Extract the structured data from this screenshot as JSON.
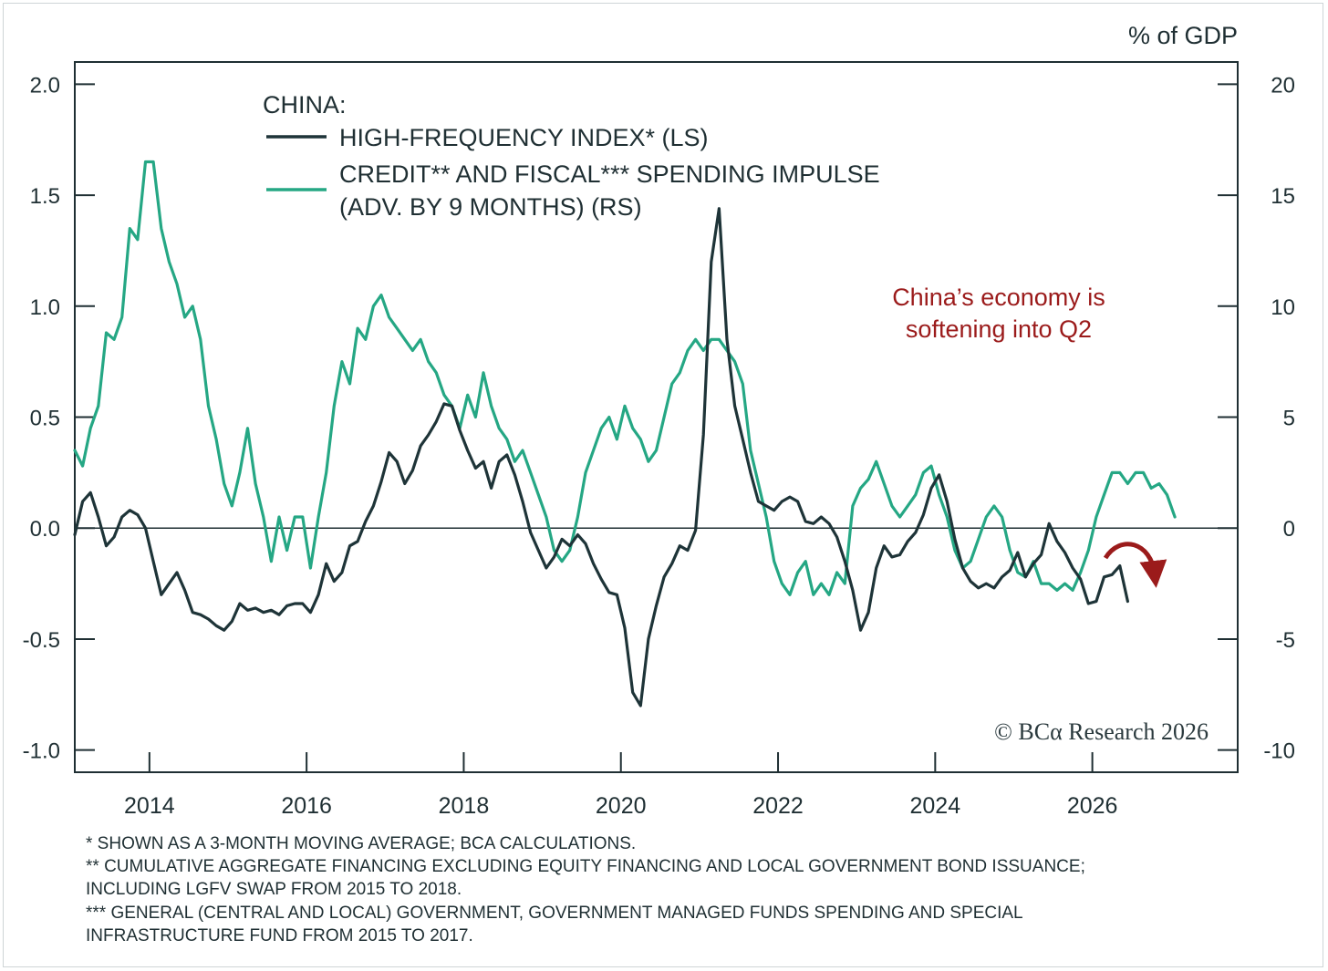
{
  "chart_data": {
    "type": "line",
    "unit_label": "% of GDP",
    "legend_title": "CHINA:",
    "legend": [
      {
        "label_lines": [
          "HIGH-FREQUENCY INDEX* (LS)"
        ],
        "color": "#1e3438"
      },
      {
        "label_lines": [
          "CREDIT** AND FISCAL*** SPENDING IMPULSE",
          "(ADV. BY 9 MONTHS) (RS)"
        ],
        "color": "#25a784"
      }
    ],
    "annotation_lines": [
      "China’s economy is",
      "softening into Q2"
    ],
    "annotation_color": "#9b1b1b",
    "copyright": "© BCα Research 2026",
    "footnotes": [
      "* SHOWN AS A 3-MONTH MOVING AVERAGE; BCA CALCULATIONS.",
      "** CUMULATIVE AGGREGATE FINANCING EXCLUDING EQUITY FINANCING AND LOCAL GOVERNMENT BOND ISSUANCE;",
      "INCLUDING LGFV SWAP FROM 2015 TO 2018.",
      "*** GENERAL (CENTRAL AND LOCAL) GOVERNMENT, GOVERNMENT MANAGED FUNDS SPENDING AND SPECIAL",
      "INFRASTRUCTURE FUND FROM 2015 TO 2017."
    ],
    "x_range": [
      2013.05,
      2027.85
    ],
    "x_ticks": [
      2014,
      2016,
      2018,
      2020,
      2022,
      2024,
      2026
    ],
    "x_tick_labels": [
      "2014",
      "2016",
      "2018",
      "2020",
      "2022",
      "2024",
      "2026"
    ],
    "y_left_range": [
      -1.1,
      2.1
    ],
    "y_left_ticks": [
      2.0,
      1.5,
      1.0,
      0.5,
      0.0,
      -0.5,
      -1.0
    ],
    "y_left_tick_labels": [
      "2.0",
      "1.5",
      "1.0",
      "0.5",
      "0.0",
      "-0.5",
      "-1.0"
    ],
    "y_right_range": [
      -11,
      21
    ],
    "y_right_ticks": [
      20,
      15,
      10,
      5,
      0,
      -5,
      -10
    ],
    "y_right_tick_labels": [
      "20",
      "15",
      "10",
      "5",
      "0",
      "-5",
      "-10"
    ],
    "grid": false,
    "legend_position": "top-left",
    "series": [
      {
        "name": "HIGH-FREQUENCY INDEX* (LS)",
        "axis": "left",
        "color": "#1e3438",
        "x": [
          2013.05,
          2013.15,
          2013.25,
          2013.35,
          2013.45,
          2013.55,
          2013.65,
          2013.75,
          2013.85,
          2013.95,
          2014.05,
          2014.15,
          2014.25,
          2014.35,
          2014.45,
          2014.55,
          2014.65,
          2014.75,
          2014.85,
          2014.95,
          2015.05,
          2015.15,
          2015.25,
          2015.35,
          2015.45,
          2015.55,
          2015.65,
          2015.75,
          2015.85,
          2015.95,
          2016.05,
          2016.15,
          2016.25,
          2016.35,
          2016.45,
          2016.55,
          2016.65,
          2016.75,
          2016.85,
          2016.95,
          2017.05,
          2017.15,
          2017.25,
          2017.35,
          2017.45,
          2017.55,
          2017.65,
          2017.75,
          2017.85,
          2017.95,
          2018.05,
          2018.15,
          2018.25,
          2018.35,
          2018.45,
          2018.55,
          2018.65,
          2018.75,
          2018.85,
          2018.95,
          2019.05,
          2019.15,
          2019.25,
          2019.35,
          2019.45,
          2019.55,
          2019.65,
          2019.75,
          2019.85,
          2019.95,
          2020.05,
          2020.15,
          2020.25,
          2020.35,
          2020.45,
          2020.55,
          2020.65,
          2020.75,
          2020.85,
          2020.95,
          2021.05,
          2021.15,
          2021.25,
          2021.35,
          2021.45,
          2021.55,
          2021.65,
          2021.75,
          2021.85,
          2021.95,
          2022.05,
          2022.15,
          2022.25,
          2022.35,
          2022.45,
          2022.55,
          2022.65,
          2022.75,
          2022.85,
          2022.95,
          2023.05,
          2023.15,
          2023.25,
          2023.35,
          2023.45,
          2023.55,
          2023.65,
          2023.75,
          2023.85,
          2023.95,
          2024.05,
          2024.15,
          2024.25,
          2024.35,
          2024.45,
          2024.55,
          2024.65,
          2024.75,
          2024.85,
          2024.95,
          2025.05,
          2025.15,
          2025.25,
          2025.35,
          2025.45,
          2025.55,
          2025.65,
          2025.75,
          2025.85,
          2025.95,
          2026.05,
          2026.15,
          2026.25,
          2026.35,
          2026.45
        ],
        "values": [
          -0.03,
          0.12,
          0.16,
          0.05,
          -0.08,
          -0.04,
          0.05,
          0.08,
          0.06,
          0.0,
          -0.15,
          -0.3,
          -0.25,
          -0.2,
          -0.28,
          -0.38,
          -0.39,
          -0.41,
          -0.44,
          -0.46,
          -0.42,
          -0.34,
          -0.37,
          -0.36,
          -0.38,
          -0.37,
          -0.39,
          -0.35,
          -0.34,
          -0.34,
          -0.38,
          -0.3,
          -0.16,
          -0.24,
          -0.2,
          -0.08,
          -0.06,
          0.03,
          0.1,
          0.21,
          0.34,
          0.3,
          0.2,
          0.26,
          0.37,
          0.42,
          0.48,
          0.56,
          0.55,
          0.44,
          0.35,
          0.27,
          0.3,
          0.18,
          0.3,
          0.33,
          0.24,
          0.12,
          -0.02,
          -0.1,
          -0.18,
          -0.13,
          -0.05,
          -0.08,
          -0.03,
          -0.07,
          -0.16,
          -0.23,
          -0.29,
          -0.3,
          -0.45,
          -0.74,
          -0.8,
          -0.5,
          -0.35,
          -0.22,
          -0.16,
          -0.08,
          -0.1,
          -0.01,
          0.42,
          1.2,
          1.44,
          0.85,
          0.55,
          0.4,
          0.25,
          0.12,
          0.1,
          0.08,
          0.12,
          0.14,
          0.12,
          0.03,
          0.02,
          0.05,
          0.02,
          -0.04,
          -0.15,
          -0.28,
          -0.46,
          -0.38,
          -0.18,
          -0.08,
          -0.13,
          -0.12,
          -0.06,
          -0.02,
          0.06,
          0.18,
          0.24,
          0.12,
          -0.05,
          -0.18,
          -0.24,
          -0.27,
          -0.25,
          -0.27,
          -0.22,
          -0.19,
          -0.11,
          -0.22,
          -0.16,
          -0.12,
          0.02,
          -0.06,
          -0.11,
          -0.18,
          -0.23,
          -0.34,
          -0.33,
          -0.22,
          -0.21,
          -0.17,
          -0.33
        ]
      },
      {
        "name": "CREDIT** AND FISCAL*** SPENDING IMPULSE (ADV. BY 9 MONTHS) (RS)",
        "axis": "right",
        "color": "#25a784",
        "x": [
          2013.05,
          2013.15,
          2013.25,
          2013.35,
          2013.45,
          2013.55,
          2013.65,
          2013.75,
          2013.85,
          2013.95,
          2014.05,
          2014.15,
          2014.25,
          2014.35,
          2014.45,
          2014.55,
          2014.65,
          2014.75,
          2014.85,
          2014.95,
          2015.05,
          2015.15,
          2015.25,
          2015.35,
          2015.45,
          2015.55,
          2015.65,
          2015.75,
          2015.85,
          2015.95,
          2016.05,
          2016.15,
          2016.25,
          2016.35,
          2016.45,
          2016.55,
          2016.65,
          2016.75,
          2016.85,
          2016.95,
          2017.05,
          2017.15,
          2017.25,
          2017.35,
          2017.45,
          2017.55,
          2017.65,
          2017.75,
          2017.85,
          2017.95,
          2018.05,
          2018.15,
          2018.25,
          2018.35,
          2018.45,
          2018.55,
          2018.65,
          2018.75,
          2018.85,
          2018.95,
          2019.05,
          2019.15,
          2019.25,
          2019.35,
          2019.45,
          2019.55,
          2019.65,
          2019.75,
          2019.85,
          2019.95,
          2020.05,
          2020.15,
          2020.25,
          2020.35,
          2020.45,
          2020.55,
          2020.65,
          2020.75,
          2020.85,
          2020.95,
          2021.05,
          2021.15,
          2021.25,
          2021.35,
          2021.45,
          2021.55,
          2021.65,
          2021.75,
          2021.85,
          2021.95,
          2022.05,
          2022.15,
          2022.25,
          2022.35,
          2022.45,
          2022.55,
          2022.65,
          2022.75,
          2022.85,
          2022.95,
          2023.05,
          2023.15,
          2023.25,
          2023.35,
          2023.45,
          2023.55,
          2023.65,
          2023.75,
          2023.85,
          2023.95,
          2024.05,
          2024.15,
          2024.25,
          2024.35,
          2024.45,
          2024.55,
          2024.65,
          2024.75,
          2024.85,
          2024.95,
          2025.05,
          2025.15,
          2025.25,
          2025.35,
          2025.45,
          2025.55,
          2025.65,
          2025.75,
          2025.85,
          2025.95,
          2026.05,
          2026.15,
          2026.25,
          2026.35,
          2026.45,
          2026.55,
          2026.65,
          2026.75,
          2026.85,
          2026.95,
          2027.05
        ],
        "values": [
          3.5,
          2.8,
          4.5,
          5.5,
          8.8,
          8.5,
          9.5,
          13.5,
          13.0,
          16.5,
          16.5,
          13.5,
          12.0,
          11.0,
          9.5,
          10.0,
          8.5,
          5.5,
          4.0,
          2.0,
          1.0,
          2.5,
          4.5,
          2.0,
          0.5,
          -1.5,
          0.5,
          -1.0,
          0.5,
          0.5,
          -1.8,
          0.5,
          2.5,
          5.5,
          7.5,
          6.5,
          9.0,
          8.5,
          10.0,
          10.5,
          9.5,
          9.0,
          8.5,
          8.0,
          8.5,
          7.5,
          7.0,
          6.0,
          5.5,
          4.5,
          6.0,
          5.0,
          7.0,
          5.5,
          4.5,
          4.0,
          3.0,
          3.5,
          2.5,
          1.5,
          0.5,
          -1.0,
          -1.5,
          -1.0,
          0.5,
          2.5,
          3.5,
          4.5,
          5.0,
          4.0,
          5.5,
          4.5,
          4.0,
          3.0,
          3.5,
          5.0,
          6.5,
          7.0,
          8.0,
          8.5,
          8.0,
          8.5,
          8.5,
          8.0,
          7.5,
          6.5,
          3.5,
          2.0,
          0.5,
          -1.5,
          -2.5,
          -3.0,
          -2.0,
          -1.5,
          -3.0,
          -2.5,
          -3.0,
          -2.0,
          -2.5,
          1.0,
          1.8,
          2.2,
          3.0,
          2.0,
          1.0,
          0.5,
          1.0,
          1.5,
          2.5,
          2.8,
          1.5,
          0.5,
          -1.0,
          -1.8,
          -1.5,
          -0.5,
          0.5,
          1.0,
          0.5,
          -1.0,
          -2.0,
          -2.2,
          -1.5,
          -2.5,
          -2.5,
          -2.8,
          -2.5,
          -2.8,
          -2.0,
          -1.0,
          0.5,
          1.5,
          2.5,
          2.5,
          2.0,
          2.5,
          2.5,
          1.8,
          2.0,
          1.5,
          0.5
        ]
      }
    ]
  }
}
